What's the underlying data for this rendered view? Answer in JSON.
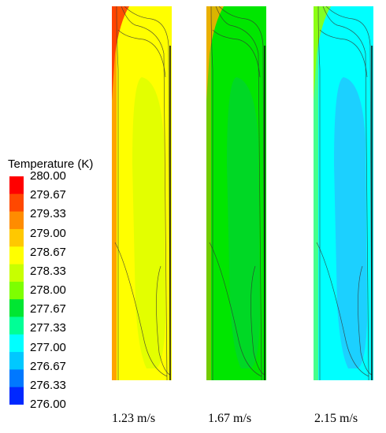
{
  "legend": {
    "title": "Temperature (K)",
    "ticks": [
      "280.00",
      "279.67",
      "279.33",
      "279.00",
      "278.67",
      "278.33",
      "278.00",
      "277.67",
      "277.33",
      "277.00",
      "276.67",
      "276.33",
      "276.00"
    ],
    "band_colors": [
      "#ff0000",
      "#ff4800",
      "#ff8c00",
      "#ffc800",
      "#ffff00",
      "#c8ff00",
      "#7dff00",
      "#00e632",
      "#00ff96",
      "#00ffff",
      "#00c8ff",
      "#0078ff",
      "#0028ff"
    ]
  },
  "panels": [
    {
      "caption": "1.23 m/s",
      "base_color": "#ffff00",
      "inner_color": "#ccff00",
      "top_color": "#ff3300"
    },
    {
      "caption": "1.67 m/s",
      "base_color": "#00e600",
      "inner_color": "#00cc44",
      "top_color": "#ffaa00"
    },
    {
      "caption": "2.15 m/s",
      "base_color": "#00ffff",
      "inner_color": "#33aaff",
      "top_color": "#99ff00"
    }
  ]
}
